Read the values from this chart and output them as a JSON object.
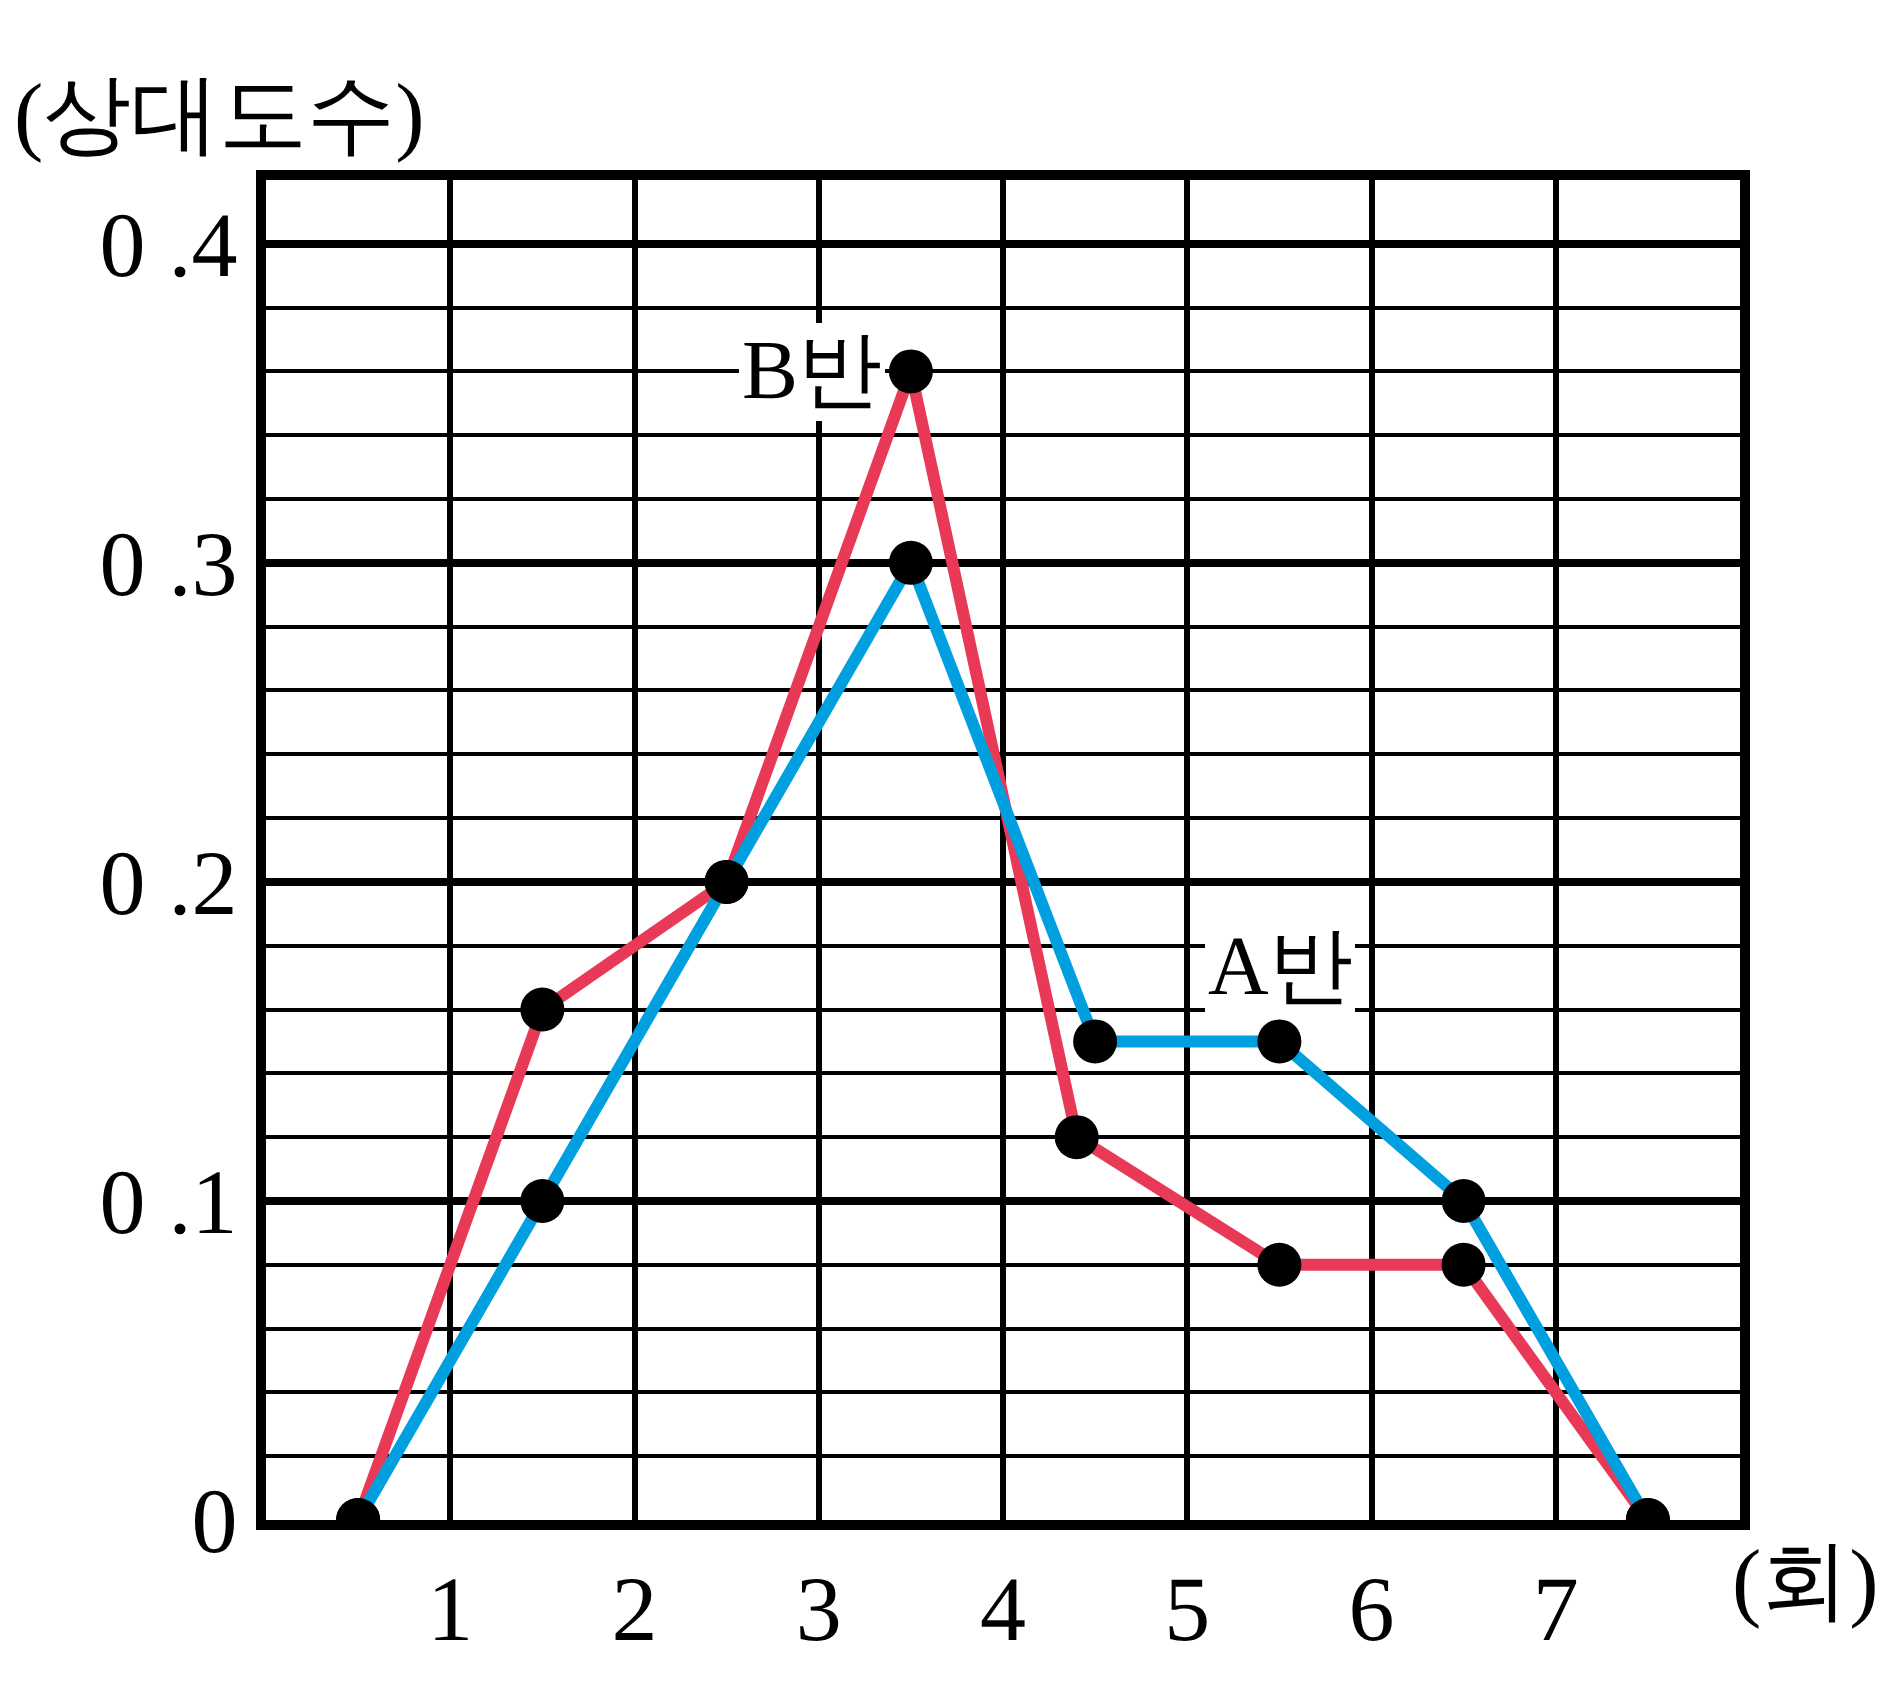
{
  "chart_data": {
    "type": "line",
    "xlabel": "(회)",
    "ylabel": "(상대도수)",
    "xlim": [
      0,
      8
    ],
    "xticks": [
      1,
      2,
      3,
      4,
      5,
      6,
      7
    ],
    "ylim": [
      0,
      0.42
    ],
    "yticks": [
      0,
      0.1,
      0.2,
      0.3,
      0.4
    ],
    "grid": true,
    "legend": false,
    "marker": "circle",
    "line_style": "solid",
    "series": [
      {
        "name": "A반",
        "color": "#00a0e0",
        "x": [
          0.5,
          1.5,
          2.5,
          3.5,
          4.5,
          5.5,
          6.5,
          7.5
        ],
        "values": [
          0,
          0.1,
          0.2,
          0.3,
          0.15,
          0.15,
          0.1,
          0
        ]
      },
      {
        "name": "B반",
        "color": "#e83a56",
        "x": [
          0.5,
          1.5,
          2.5,
          3.5,
          4.4,
          5.5,
          6.5,
          7.5
        ],
        "values": [
          0,
          0.16,
          0.2,
          0.36,
          0.12,
          0.08,
          0.08,
          0
        ]
      }
    ]
  }
}
